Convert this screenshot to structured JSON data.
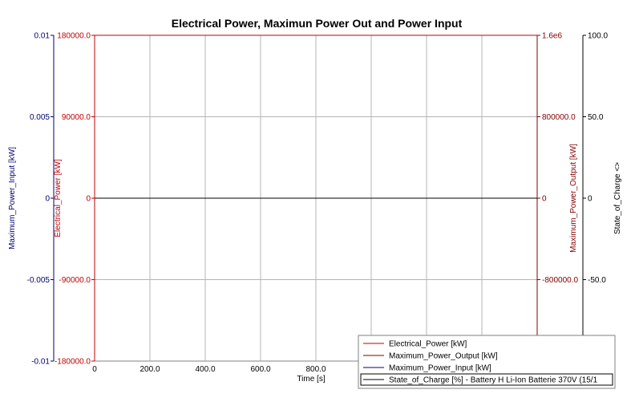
{
  "chart_data": {
    "type": "line",
    "title": "Electrical Power, Maximun Power Out and Power Input",
    "xlabel": "Time [s]",
    "xlim": [
      0,
      1600
    ],
    "x_ticks": [
      "0",
      "200.0",
      "400.0",
      "600.0",
      "800.0"
    ],
    "axes": [
      {
        "id": "maxin",
        "side": "left-outer",
        "label": "Maximum_Power_Input [kW]",
        "color": "#00006e",
        "ylim": [
          -0.01,
          0.01
        ],
        "ticks": [
          "0.01",
          "0.005",
          "0",
          "-0.005",
          "-0.01"
        ]
      },
      {
        "id": "elec",
        "side": "left-inner",
        "label": "Electrical_Power [kW]",
        "color": "#c00000",
        "ylim": [
          -180000,
          180000
        ],
        "ticks": [
          "180000.0",
          "90000.0",
          "0",
          "-90000.0",
          "-180000.0"
        ]
      },
      {
        "id": "maxout",
        "side": "right-inner",
        "label": "Maximum_Power_Output [kW]",
        "color": "#800000",
        "ylim": [
          -1600000,
          1600000
        ],
        "ticks": [
          "1.6e6",
          "800000.0",
          "0",
          "-800000.0",
          ""
        ]
      },
      {
        "id": "soc",
        "side": "right-outer",
        "label": "State_of_Charge <>",
        "color": "#000000",
        "ylim": [
          -100,
          100
        ],
        "ticks": [
          "100.0",
          "50.0",
          "0",
          "-50.0",
          ""
        ]
      }
    ],
    "series": [
      {
        "name": "Electrical_Power [kW]",
        "color": "#c00000",
        "x": [
          0,
          1600
        ],
        "y": [
          0,
          0
        ]
      },
      {
        "name": "Maximum_Power_Output [kW]",
        "color": "#800000",
        "x": [
          0,
          1600
        ],
        "y": [
          0,
          0
        ]
      },
      {
        "name": "Maximum_Power_Input [kW]",
        "color": "#000080",
        "x": [
          0,
          1600
        ],
        "y": [
          0,
          0
        ]
      },
      {
        "name": "State_of_Charge [%] - Battery H Li-Ion Batterie 370V (15/1",
        "color": "#000000",
        "x": [
          0,
          1600
        ],
        "y": [
          0,
          0
        ]
      }
    ],
    "legend_position": "bottom-right",
    "grid": true
  }
}
